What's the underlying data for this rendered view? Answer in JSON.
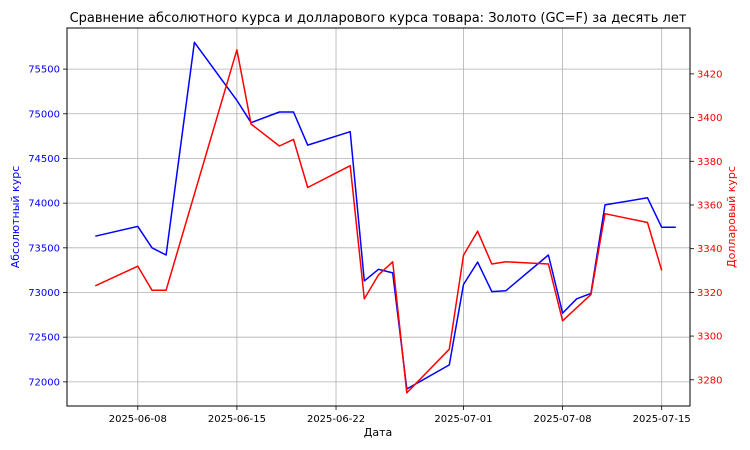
{
  "chart_data": {
    "type": "line",
    "title": "Сравнение абсолютного курса и долларового курса товара: Золото (GC=F) за десять лет",
    "xlabel": "Дата",
    "ylabel_left": "Абсолютный курс",
    "ylabel_right": "Долларовый курс",
    "grid": true,
    "x_ticks": [
      "2025-06-08",
      "2025-06-15",
      "2025-06-22",
      "2025-07-01",
      "2025-07-08",
      "2025-07-15"
    ],
    "x_range": [
      "2025-06-03",
      "2025-07-17"
    ],
    "y_left_ticks": [
      72000,
      72500,
      73000,
      73500,
      74000,
      74500,
      75000,
      75500
    ],
    "y_left_range": [
      71730,
      75960
    ],
    "y_right_ticks": [
      3280,
      3300,
      3320,
      3340,
      3360,
      3380,
      3400,
      3420
    ],
    "y_right_range": [
      3268,
      3441
    ],
    "x": [
      "2025-06-05",
      "2025-06-08",
      "2025-06-09",
      "2025-06-10",
      "2025-06-12",
      "2025-06-15",
      "2025-06-16",
      "2025-06-18",
      "2025-06-19",
      "2025-06-20",
      "2025-06-23",
      "2025-06-24",
      "2025-06-25",
      "2025-06-26",
      "2025-06-27",
      "2025-06-30",
      "2025-07-01",
      "2025-07-02",
      "2025-07-03",
      "2025-07-04",
      "2025-07-07",
      "2025-07-08",
      "2025-07-09",
      "2025-07-10",
      "2025-07-11",
      "2025-07-14",
      "2025-07-15",
      "2025-07-16"
    ],
    "series": [
      {
        "axis": "left",
        "color": "#0000ff",
        "values": [
          73630,
          73740,
          73500,
          73420,
          75800,
          75150,
          74900,
          75020,
          75020,
          74650,
          74800,
          73130,
          73260,
          73220,
          71920,
          72190,
          73090,
          73340,
          73010,
          73020,
          73420,
          72770,
          72930,
          72990,
          73980,
          74060,
          73730,
          73730
        ]
      },
      {
        "axis": "right",
        "color": "#ff0000",
        "values": [
          3323,
          3332,
          3321,
          3321,
          null,
          3431,
          3397,
          3387,
          3390,
          3368,
          3378,
          3317,
          3328,
          3334,
          3274,
          3294,
          3337,
          3348,
          3333,
          3334,
          3333,
          3307,
          3313,
          3319,
          3356,
          3352,
          3330,
          null
        ]
      }
    ]
  }
}
